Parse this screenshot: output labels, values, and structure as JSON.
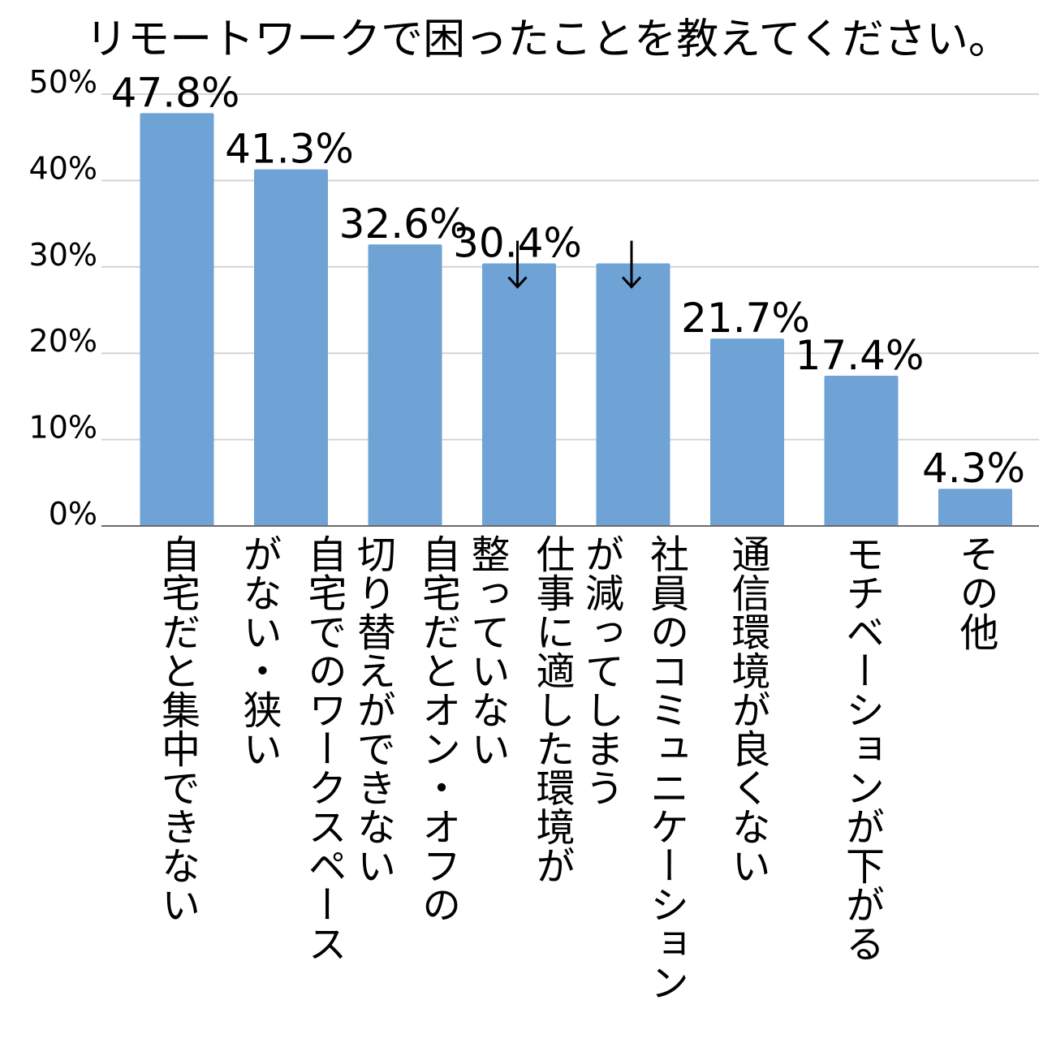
{
  "chart_data": {
    "type": "bar",
    "title": "リモートワークで困ったことを教えてください。",
    "xlabel": "",
    "ylabel": "",
    "ylim": [
      0,
      50
    ],
    "yticks": [
      "0%",
      "10%",
      "20%",
      "30%",
      "40%",
      "50%"
    ],
    "grid": true,
    "legend": "none",
    "categories": [
      "自宅だと集中できない",
      "自宅でのワークスペースがない・狭い",
      "自宅だとオン・オフの切り替えができない",
      "仕事に適した環境が整っていない",
      "社員のコミュニケーションが減ってしまう",
      "通信環境が良くない",
      "モチベーションが下がる",
      "その他"
    ],
    "category_lines": [
      [
        "自宅だと集中できない"
      ],
      [
        "自宅でのワークスペース",
        "がない・狭い"
      ],
      [
        "自宅だとオン・オフの",
        "切り替えができない"
      ],
      [
        "仕事に適した環境が",
        "整っていない"
      ],
      [
        "社員のコミュニケーション",
        "が減ってしまう"
      ],
      [
        "通信環境が良くない"
      ],
      [
        "モチベーションが下がる"
      ],
      [
        "その他"
      ]
    ],
    "values": [
      47.8,
      41.3,
      32.6,
      30.4,
      30.4,
      21.7,
      17.4,
      4.3
    ],
    "value_labels": [
      "47.8%",
      "41.3%",
      "32.6%",
      "30.4%",
      "",
      "21.7%",
      "17.4%",
      "4.3%"
    ],
    "bar_color": "#6fa3d6",
    "axis_color": "#6b6b6b",
    "grid_color": "#d4d4d4"
  }
}
